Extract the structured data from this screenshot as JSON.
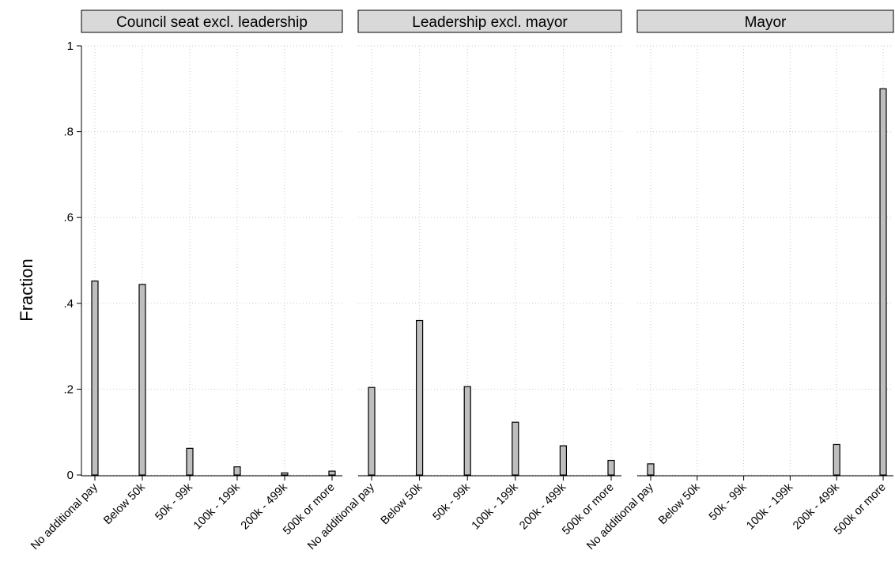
{
  "chart_data": {
    "type": "bar",
    "ylabel": "Fraction",
    "ylim": [
      0,
      1
    ],
    "yticks": [
      {
        "value": 0,
        "label": "0"
      },
      {
        "value": 0.2,
        "label": ".2"
      },
      {
        "value": 0.4,
        "label": ".4"
      },
      {
        "value": 0.6,
        "label": ".6"
      },
      {
        "value": 0.8,
        "label": ".8"
      },
      {
        "value": 1,
        "label": "1"
      }
    ],
    "categories": [
      "No additional pay",
      "Below 50k",
      "50k - 99k",
      "100k - 199k",
      "200k - 499k",
      "500k or more"
    ],
    "grid": true,
    "colors": {
      "bar_fill": "#bebebe",
      "bar_stroke": "#000000",
      "header_fill": "#d9d9d9",
      "grid": "#c8c8c8"
    },
    "panels": [
      {
        "title": "Council seat excl. leadership",
        "values": [
          0.452,
          0.444,
          0.062,
          0.019,
          0.005,
          0.009
        ]
      },
      {
        "title": "Leadership excl. mayor",
        "values": [
          0.204,
          0.36,
          0.206,
          0.123,
          0.068,
          0.034
        ]
      },
      {
        "title": "Mayor",
        "values": [
          0.026,
          0,
          0,
          0,
          0.071,
          0.9
        ]
      }
    ]
  }
}
